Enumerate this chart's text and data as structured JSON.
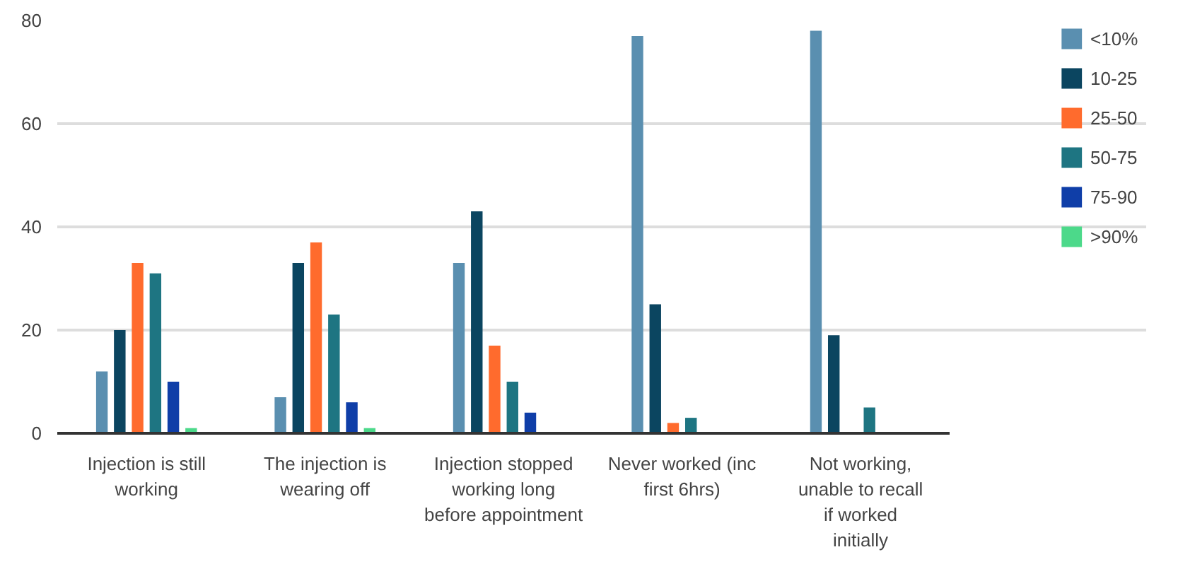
{
  "chart_data": {
    "type": "bar",
    "categories": [
      "Injection is still working",
      "The injection is wearing off",
      "Injection stopped working long before appointment",
      "Never worked (inc first 6hrs)",
      "Not working, unable to recall if worked initially"
    ],
    "series": [
      {
        "name": "<10%",
        "color": "#5a8fb0",
        "values": [
          12,
          7,
          33,
          77,
          78
        ]
      },
      {
        "name": "10-25",
        "color": "#0b4560",
        "values": [
          20,
          33,
          43,
          25,
          19
        ]
      },
      {
        "name": "25-50",
        "color": "#ff6b2d",
        "values": [
          33,
          37,
          17,
          2,
          0
        ]
      },
      {
        "name": "50-75",
        "color": "#1e7582",
        "values": [
          31,
          23,
          10,
          3,
          5
        ]
      },
      {
        "name": "75-90",
        "color": "#0f3ea8",
        "values": [
          10,
          6,
          4,
          0,
          0
        ]
      },
      {
        "name": ">90%",
        "color": "#4cd98a",
        "values": [
          1,
          1,
          0,
          0,
          0
        ]
      }
    ],
    "ylim": [
      0,
      80
    ],
    "yticks": [
      0,
      20,
      40,
      60,
      80
    ],
    "grid": "y",
    "legend": "right"
  }
}
